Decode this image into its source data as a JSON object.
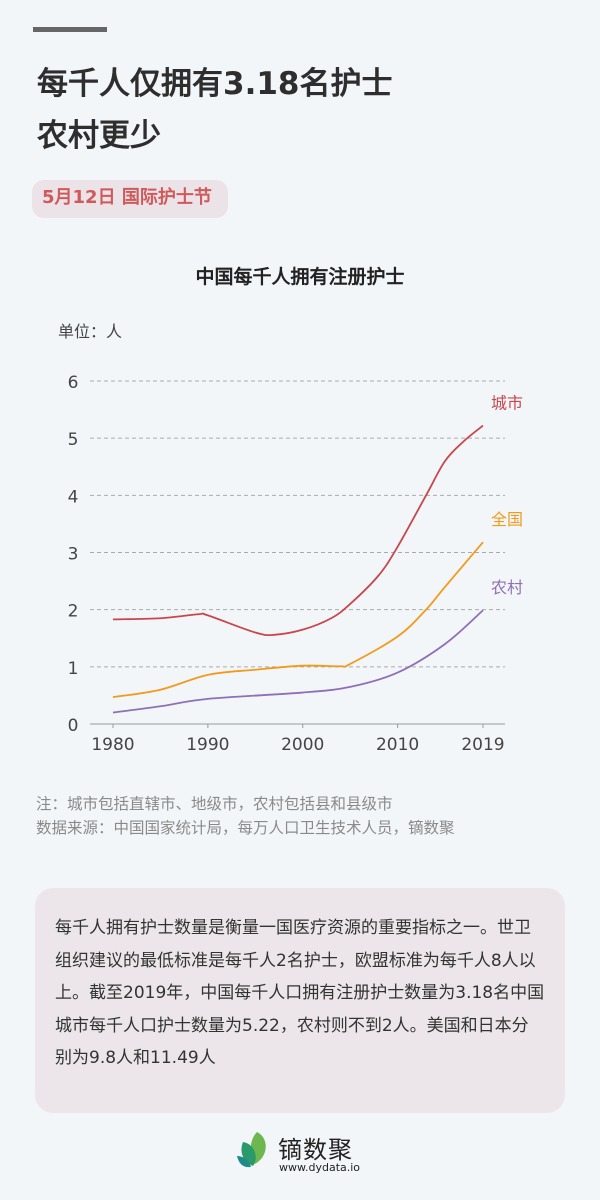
{
  "header": {
    "title_line1": "每千人仅拥有3.18名护士",
    "title_line2": "农村更少",
    "tag": "5月12日 国际护士节"
  },
  "chart_data": {
    "type": "line",
    "title": "中国每千人拥有注册护士",
    "unit_label": "单位：人",
    "x_ticks": [
      "1980",
      "1990",
      "2000",
      "2010",
      "2019"
    ],
    "y_ticks": [
      "0",
      "1",
      "2",
      "3",
      "4",
      "5",
      "6"
    ],
    "xlim": [
      1980,
      2019
    ],
    "ylim": [
      0,
      6
    ],
    "grid": "horizontal dashed",
    "series": [
      {
        "name": "城市",
        "color": "#c9474c",
        "x": [
          1980,
          1985,
          1989,
          1990,
          1995,
          1997,
          2000,
          2003,
          2005,
          2008,
          2010,
          2013,
          2015,
          2017,
          2019
        ],
        "values": [
          1.83,
          1.85,
          1.92,
          1.9,
          1.6,
          1.56,
          1.65,
          1.85,
          2.1,
          2.6,
          3.1,
          4.0,
          4.6,
          4.95,
          5.22
        ]
      },
      {
        "name": "全国",
        "color": "#f29b1a",
        "x": [
          1980,
          1985,
          1990,
          1995,
          2000,
          2004,
          2005,
          2010,
          2013,
          2015,
          2019
        ],
        "values": [
          0.47,
          0.6,
          0.86,
          0.95,
          1.02,
          1.01,
          1.05,
          1.53,
          2.0,
          2.4,
          3.18
        ]
      },
      {
        "name": "农村",
        "color": "#8f6fb5",
        "x": [
          1980,
          1985,
          1990,
          2000,
          2005,
          2010,
          2015,
          2019
        ],
        "values": [
          0.2,
          0.31,
          0.44,
          0.55,
          0.65,
          0.9,
          1.4,
          1.99
        ]
      }
    ]
  },
  "notes": {
    "line1": "注：城市包括直辖市、地级市，农村包括县和县级市",
    "line2": "数据来源：中国国家统计局，每万人口卫生技术人员，镝数聚"
  },
  "summary": "每千人拥有护士数量是衡量一国医疗资源的重要指标之一。世卫组织建议的最低标准是每千人2名护士，欧盟标准为每千人8人以上。截至2019年，中国每千人口拥有注册护士数量为3.18名中国城市每千人口护士数量为5.22，农村则不到2人。美国和日本分别为9.8人和11.49人",
  "footer": {
    "brand": "镝数聚",
    "url": "www.dydata.io"
  }
}
